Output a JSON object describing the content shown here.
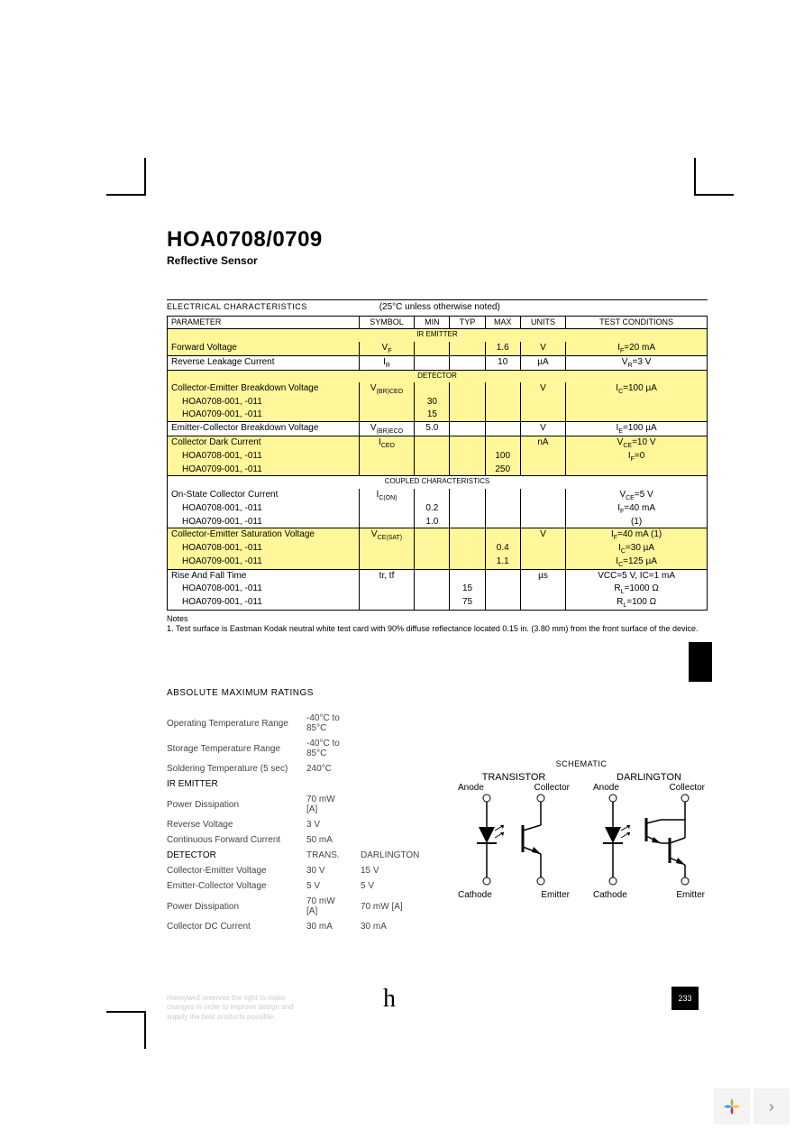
{
  "title": "HOA0708/0709",
  "subtitle": "Reflective Sensor",
  "spec_section": {
    "label": "ELECTRICAL CHARACTERISTICS",
    "condition_note": "(25°C unless otherwise noted)",
    "headers": [
      "PARAMETER",
      "SYMBOL",
      "MIN",
      "TYP",
      "MAX",
      "UNITS",
      "TEST CONDITIONS"
    ]
  },
  "ir": {
    "hdr": "IR EMITTER",
    "r1": {
      "p": "Forward Voltage",
      "s": "V",
      "sub": "F",
      "max": "1.6",
      "u": "V",
      "c": "I",
      "csub": "F",
      "cv": "=20 mA"
    },
    "r2": {
      "p": "Reverse Leakage Current",
      "s": "I",
      "sub": "R",
      "max": "10",
      "u": "µA",
      "c": "V",
      "csub": "R",
      "cv": "=3 V"
    }
  },
  "det": {
    "hdr": "DETECTOR",
    "r1": {
      "p": "Collector-Emitter Breakdown Voltage",
      "s": "V",
      "sub": "(BR)CEO",
      "u": "V",
      "c": "I",
      "csub": "C",
      "cv": "=100 µA"
    },
    "r1a": {
      "p": "HOA0708-001, -011",
      "min": "30"
    },
    "r1b": {
      "p": "HOA0709-001, -011",
      "min": "15"
    },
    "r2": {
      "p": "Emitter-Collector Breakdown Voltage",
      "s": "V",
      "sub": "(BR)ECO",
      "min": "5.0",
      "u": "V",
      "c": "I",
      "csub": "E",
      "cv": "=100 µA"
    },
    "r3": {
      "p": "Collector Dark Current",
      "s": "I",
      "sub": "CEO",
      "u": "nA",
      "c": "V",
      "csub": "CE",
      "cv": "=10 V"
    },
    "r3a": {
      "p": "HOA0708-001, -011",
      "max": "100",
      "c": "I",
      "csub": "F",
      "cv": "=0"
    },
    "r3b": {
      "p": "HOA0709-001, -011",
      "max": "250"
    }
  },
  "coup": {
    "hdr": "COUPLED CHARACTERISTICS",
    "r1": {
      "p": "On-State Collector Current",
      "s": "I",
      "sub": "C(ON)",
      "c": "V",
      "csub": "CE",
      "cv": "=5 V"
    },
    "r1a": {
      "p": "HOA0708-001, -011",
      "min": "0.2",
      "c": "I",
      "csub": "F",
      "cv": "=40 mA"
    },
    "r1b": {
      "p": "HOA0709-001, -011",
      "min": "1.0",
      "cplain": "(1)"
    },
    "r2": {
      "p": "Collector-Emitter Saturation Voltage",
      "s": "V",
      "sub": "CE(SAT)",
      "u": "V",
      "c": "I",
      "csub": "F",
      "cv": "=40 mA (1)"
    },
    "r2a": {
      "p": "HOA0708-001, -011",
      "max": "0.4",
      "c": "I",
      "csub": "C",
      "cv": "=30 µA"
    },
    "r2b": {
      "p": "HOA0709-001, -011",
      "max": "1.1",
      "c": "I",
      "csub": "C",
      "cv": "=125 µA"
    },
    "r3": {
      "p": "Rise And Fall Time",
      "splain": "tr, tf",
      "u": "µs",
      "cplain": "VCC=5 V, IC=1 mA"
    },
    "r3a": {
      "p": "HOA0708-001, -011",
      "typ": "15",
      "c": "R",
      "csub": "L",
      "cv": "=1000 Ω"
    },
    "r3b": {
      "p": "HOA0709-001, -011",
      "typ": "75",
      "c": "R",
      "csub": "L",
      "cv": "=100 Ω"
    }
  },
  "notes": {
    "hdr": "Notes",
    "n1": "1. Test surface is Eastman Kodak neutral white test card with 90% diffuse reflectance located 0.15 in. (3.80 mm) from the front surface of the device."
  },
  "abs": {
    "title": "ABSOLUTE MAXIMUM RATINGS",
    "rows": [
      {
        "l": "Operating Temperature Range",
        "v1": "-40°C to 85°C"
      },
      {
        "l": "Storage Temperature Range",
        "v1": "-40°C to 85°C"
      },
      {
        "l": "Soldering Temperature (5 sec)",
        "v1": "240°C"
      },
      {
        "l": "IR EMITTER",
        "hdr": true
      },
      {
        "l": "Power Dissipation",
        "v1": "70 mW [A]"
      },
      {
        "l": "Reverse Voltage",
        "v1": "3 V"
      },
      {
        "l": "Continuous Forward Current",
        "v1": "50 mA"
      },
      {
        "l": "DETECTOR",
        "v1": "TRANS.",
        "v2": "DARLINGTON",
        "hdr": true
      },
      {
        "l": "Collector-Emitter Voltage",
        "v1": "30 V",
        "v2": "15 V"
      },
      {
        "l": "Emitter-Collector Voltage",
        "v1": "5 V",
        "v2": "5 V"
      },
      {
        "l": "Power Dissipation",
        "v1": "70 mW [A]",
        "v2": "70 mW [A]"
      },
      {
        "l": "Collector DC Current",
        "v1": "30 mA",
        "v2": "30 mA"
      }
    ]
  },
  "schematic": {
    "title": "SCHEMATIC",
    "col1": "TRANSISTOR",
    "col2": "DARLINGTON",
    "anode": "Anode",
    "collector": "Collector",
    "cathode": "Cathode",
    "emitter": "Emitter"
  },
  "footer": {
    "disclaimer": "Honeywell reserves the right to make changes in order to improve design and supply the best products possible.",
    "logo": "h",
    "page": "233"
  },
  "colors": {
    "highlight": "#fff799",
    "border": "#000000"
  }
}
